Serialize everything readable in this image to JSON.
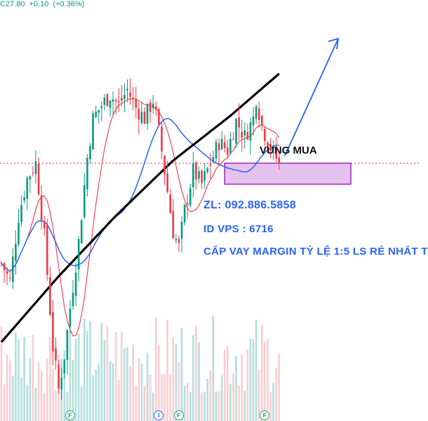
{
  "ticker": {
    "close": "C27.80",
    "change": "+0.10",
    "change_pct": "(+0.36%)"
  },
  "annotations": {
    "zone_label": "VÙNG MUA",
    "contact": "ZL: 092.886.5858",
    "vps_id": "ID VPS : 6716",
    "margin_note": "CẤP VAY MARGIN TỶ LỆ 1:5 LS RẺ NHẤT T"
  },
  "events": [
    {
      "label": "F",
      "type": "financials",
      "bar": 24
    },
    {
      "label": "I",
      "type": "info",
      "bar": 55
    },
    {
      "label": "F",
      "type": "financials",
      "bar": 62
    },
    {
      "label": "F",
      "type": "financials",
      "bar": 92
    }
  ],
  "colors": {
    "up": "#089981",
    "down": "#f23645",
    "ma_short": "#f23645",
    "ma_mid": "#2962ff",
    "ma_long": "#000000",
    "zone_fill": "#e6c3ee",
    "zone_border": "#9c27b0",
    "arrow": "#2962ff",
    "vol_up": "#b2dfdb",
    "vol_down": "#facdd1"
  },
  "chart_data": {
    "type": "candlestick",
    "title": "",
    "xlabel": "",
    "ylabel": "",
    "last_price": 27.8,
    "ylim": [
      18.0,
      34.0
    ],
    "grid": false,
    "anchors": [
      [
        0,
        24.0
      ],
      [
        3,
        23.3
      ],
      [
        6,
        25.8
      ],
      [
        9,
        27.2
      ],
      [
        12,
        27.8
      ],
      [
        15,
        25.0
      ],
      [
        18,
        20.8
      ],
      [
        20,
        19.2
      ],
      [
        22,
        20.5
      ],
      [
        24,
        22.3
      ],
      [
        27,
        24.8
      ],
      [
        30,
        28.0
      ],
      [
        32,
        29.5
      ],
      [
        35,
        30.0
      ],
      [
        38,
        30.4
      ],
      [
        41,
        30.0
      ],
      [
        44,
        30.6
      ],
      [
        47,
        29.9
      ],
      [
        50,
        29.5
      ],
      [
        53,
        30.2
      ],
      [
        55,
        29.0
      ],
      [
        57,
        27.5
      ],
      [
        60,
        25.2
      ],
      [
        62,
        24.6
      ],
      [
        64,
        26.0
      ],
      [
        67,
        27.5
      ],
      [
        70,
        27.0
      ],
      [
        73,
        27.8
      ],
      [
        76,
        28.6
      ],
      [
        79,
        28.3
      ],
      [
        82,
        29.4
      ],
      [
        85,
        28.8
      ],
      [
        88,
        29.5
      ],
      [
        89,
        30.3
      ],
      [
        91,
        29.2
      ],
      [
        94,
        28.4
      ],
      [
        97,
        27.8
      ]
    ],
    "buy_zone": {
      "low": 27.0,
      "high": 27.8,
      "label": "VÙNG MUA"
    },
    "moving_averages": [
      {
        "name": "",
        "period": 10
      },
      {
        "name": "",
        "period": 30
      },
      {
        "name": "",
        "period": 200
      }
    ],
    "ma_long_points": [
      [
        0,
        21.0
      ],
      [
        20,
        23.5
      ],
      [
        40,
        25.8
      ],
      [
        60,
        27.9
      ],
      [
        80,
        29.6
      ],
      [
        97,
        31.2
      ]
    ]
  }
}
